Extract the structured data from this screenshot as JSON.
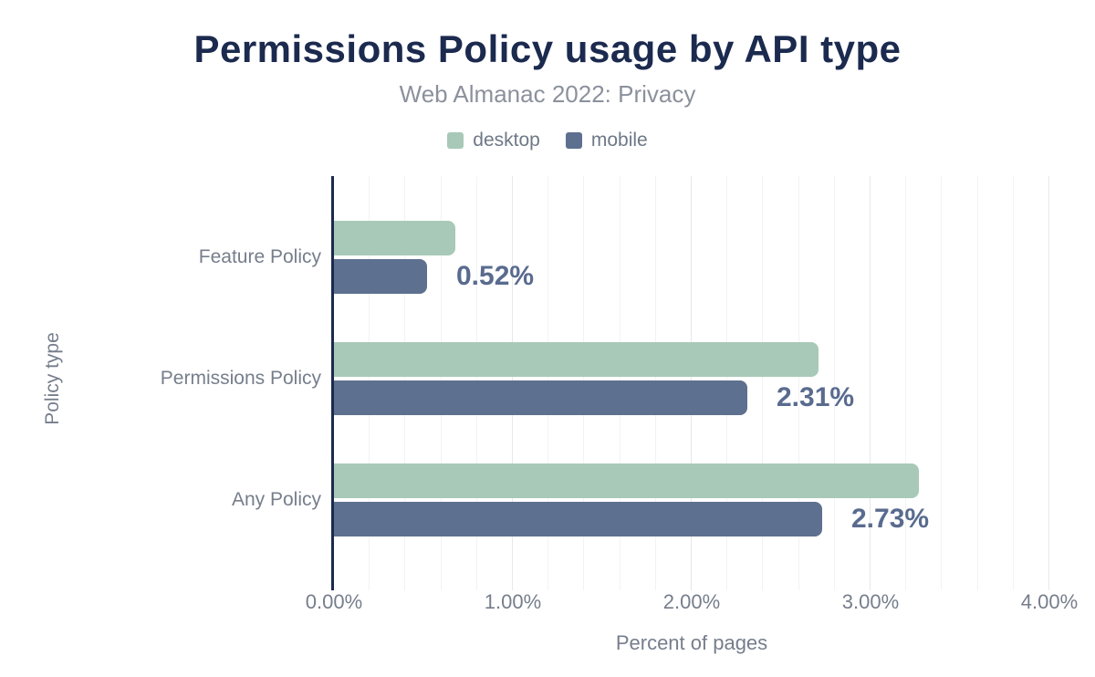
{
  "header": {
    "title": "Permissions Policy usage by API type",
    "subtitle": "Web Almanac 2022: Privacy"
  },
  "legend": {
    "items": [
      {
        "label": "desktop",
        "color": "#a8c9b8"
      },
      {
        "label": "mobile",
        "color": "#5e708f"
      }
    ]
  },
  "chart_data": {
    "type": "bar",
    "orientation": "horizontal",
    "title": "Permissions Policy usage by API type",
    "subtitle": "Web Almanac 2022: Privacy",
    "categories": [
      "Feature Policy",
      "Permissions Policy",
      "Any Policy"
    ],
    "series": [
      {
        "name": "desktop",
        "color": "#a8c9b8",
        "values": [
          0.68,
          2.71,
          3.27
        ]
      },
      {
        "name": "mobile",
        "color": "#5e708f",
        "values": [
          0.52,
          2.31,
          2.73
        ]
      }
    ],
    "value_labels": {
      "on_series": "mobile",
      "texts": [
        "0.52%",
        "2.31%",
        "2.73%"
      ]
    },
    "xlabel": "Percent of pages",
    "ylabel": "Policy type",
    "xlim": [
      0,
      4
    ],
    "x_ticks": [
      {
        "value": 0,
        "label": "0.00%"
      },
      {
        "value": 1,
        "label": "1.00%"
      },
      {
        "value": 2,
        "label": "2.00%"
      },
      {
        "value": 3,
        "label": "3.00%"
      },
      {
        "value": 4,
        "label": "4.00%"
      }
    ],
    "grid": {
      "minor_step": 0.2,
      "major_step": 1,
      "direction": "vertical"
    },
    "legend_position": "top"
  },
  "colors": {
    "title": "#1b2a4e",
    "subtitle": "#8b919c",
    "axis_line": "#1b2a4e",
    "label_gray": "#767e8c",
    "value_label": "#596b8e",
    "grid_minor": "#f3f3f4",
    "grid_major": "#e8e8ea",
    "background": "#ffffff"
  }
}
